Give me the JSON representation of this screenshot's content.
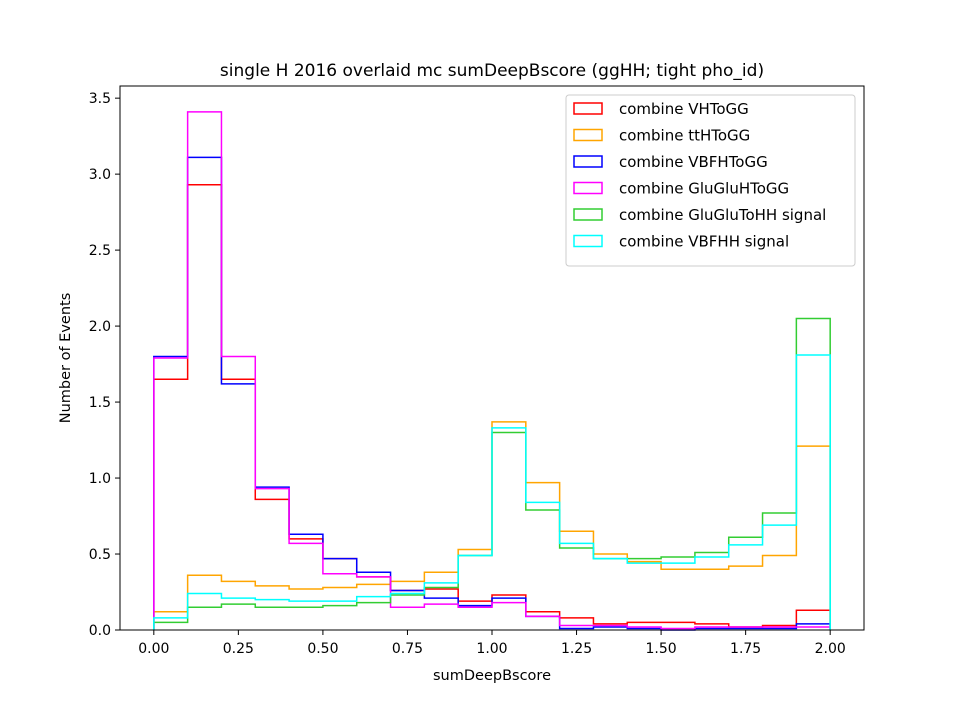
{
  "chart_data": {
    "type": "histogram",
    "title": "single H 2016 overlaid mc sumDeepBscore (ggHH; tight pho_id)",
    "xlabel": "sumDeepBscore",
    "ylabel": "Number of Events",
    "xlim": [
      -0.1,
      2.1
    ],
    "ylim": [
      0,
      3.58
    ],
    "x_ticks": [
      "0.00",
      "0.25",
      "0.50",
      "0.75",
      "1.00",
      "1.25",
      "1.50",
      "1.75",
      "2.00"
    ],
    "y_ticks": [
      "0.0",
      "0.5",
      "1.0",
      "1.5",
      "2.0",
      "2.5",
      "3.0",
      "3.5"
    ],
    "legend_position": "top-right",
    "bin_edges": [
      0.0,
      0.1,
      0.2,
      0.3,
      0.4,
      0.5,
      0.6,
      0.7,
      0.8,
      0.9,
      1.0,
      1.1,
      1.2,
      1.3,
      1.4,
      1.5,
      1.6,
      1.7,
      1.8,
      1.9,
      2.0
    ],
    "series": [
      {
        "name": "combine VHToGG",
        "color": "#ff0000",
        "values": [
          1.65,
          2.93,
          1.65,
          0.86,
          0.6,
          0.47,
          0.35,
          0.26,
          0.27,
          0.19,
          0.23,
          0.12,
          0.08,
          0.04,
          0.05,
          0.05,
          0.04,
          0.02,
          0.03,
          0.13
        ]
      },
      {
        "name": "combine ttHToGG",
        "color": "#ffa500",
        "values": [
          0.12,
          0.36,
          0.32,
          0.29,
          0.27,
          0.28,
          0.3,
          0.32,
          0.38,
          0.53,
          1.37,
          0.97,
          0.65,
          0.5,
          0.45,
          0.4,
          0.4,
          0.42,
          0.49,
          1.21
        ]
      },
      {
        "name": "combine VBFHToGG",
        "color": "#0000ff",
        "values": [
          1.8,
          3.11,
          1.62,
          0.94,
          0.63,
          0.47,
          0.38,
          0.26,
          0.21,
          0.16,
          0.21,
          0.09,
          0.01,
          0.02,
          0.01,
          0.0,
          0.01,
          0.01,
          0.01,
          0.04
        ]
      },
      {
        "name": "combine GluGluHToGG",
        "color": "#ff00ff",
        "values": [
          1.79,
          3.41,
          1.8,
          0.93,
          0.57,
          0.37,
          0.35,
          0.15,
          0.17,
          0.15,
          0.18,
          0.09,
          0.03,
          0.03,
          0.02,
          0.01,
          0.02,
          0.02,
          0.02,
          0.02
        ]
      },
      {
        "name": "combine GluGluToHH signal",
        "color": "#32cd32",
        "values": [
          0.05,
          0.15,
          0.17,
          0.15,
          0.15,
          0.16,
          0.18,
          0.23,
          0.28,
          0.49,
          1.3,
          0.79,
          0.54,
          0.47,
          0.47,
          0.48,
          0.51,
          0.61,
          0.77,
          2.05
        ]
      },
      {
        "name": "combine VBFHH signal",
        "color": "#00ffff",
        "values": [
          0.08,
          0.24,
          0.21,
          0.2,
          0.19,
          0.19,
          0.22,
          0.24,
          0.31,
          0.49,
          1.33,
          0.84,
          0.57,
          0.47,
          0.44,
          0.44,
          0.48,
          0.56,
          0.69,
          1.81
        ]
      }
    ]
  }
}
